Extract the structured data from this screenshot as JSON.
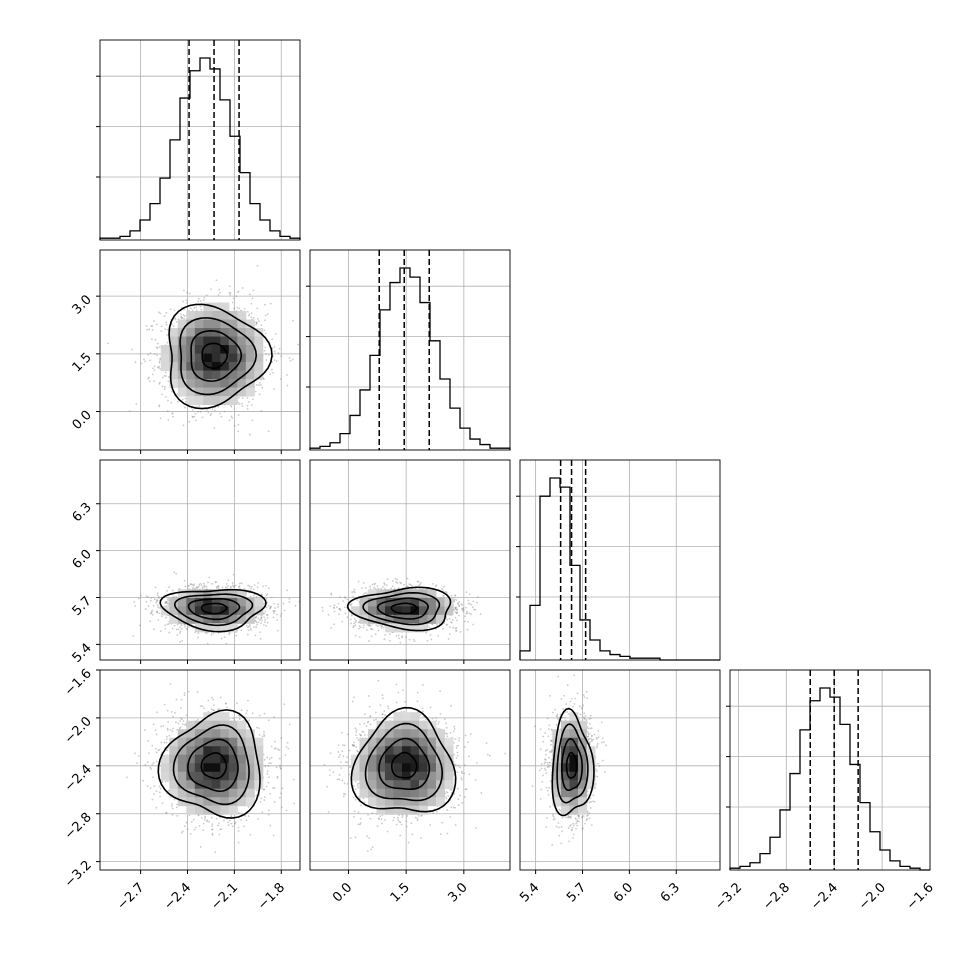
{
  "chart_data": {
    "type": "corner",
    "parameters": [
      {
        "ticks": [
          -2.7,
          -2.4,
          -2.1,
          -1.8
        ],
        "tick_labels": [
          "−2.7",
          "−2.4",
          "−2.1",
          "−1.8"
        ],
        "range": [
          -2.96,
          -1.68
        ],
        "mean": -2.23,
        "sigma": 0.16,
        "quantiles": [
          -2.39,
          -2.23,
          -2.07
        ],
        "hist": [
          0.01,
          0.01,
          0.02,
          0.05,
          0.11,
          0.2,
          0.34,
          0.55,
          0.78,
          0.93,
          1.0,
          0.94,
          0.77,
          0.57,
          0.37,
          0.2,
          0.11,
          0.05,
          0.02,
          0.01
        ]
      },
      {
        "ticks": [
          0.0,
          1.5,
          3.0
        ],
        "tick_labels": [
          "0.0",
          "1.5",
          "3.0"
        ],
        "range": [
          -1.0,
          4.2
        ],
        "mean": 1.45,
        "sigma": 0.65,
        "quantiles": [
          0.8,
          1.45,
          2.1
        ],
        "hist": [
          0.01,
          0.02,
          0.04,
          0.09,
          0.19,
          0.33,
          0.52,
          0.77,
          0.92,
          1.0,
          0.95,
          0.81,
          0.6,
          0.39,
          0.23,
          0.12,
          0.06,
          0.03,
          0.01,
          0.01
        ]
      },
      {
        "ticks": [
          5.4,
          5.7,
          6.0,
          6.3
        ],
        "tick_labels": [
          "5.4",
          "5.7",
          "6.0",
          "6.3"
        ],
        "range": [
          5.3,
          6.58
        ],
        "mean": 5.63,
        "sigma": 0.065,
        "quantiles": [
          5.56,
          5.63,
          5.72
        ],
        "hist": [
          0.05,
          0.3,
          0.9,
          1.0,
          0.95,
          0.52,
          0.22,
          0.11,
          0.05,
          0.03,
          0.02,
          0.01,
          0.01,
          0.01,
          0.0,
          0.0,
          0.0,
          0.0,
          0.0,
          0.0
        ]
      },
      {
        "ticks": [
          -3.2,
          -2.8,
          -2.4,
          -2.0,
          -1.6
        ],
        "tick_labels": [
          "−3.2",
          "−2.8",
          "−2.4",
          "−2.0",
          "−1.6"
        ],
        "range": [
          -3.27,
          -1.6
        ],
        "mean": -2.4,
        "sigma": 0.21,
        "quantiles": [
          -2.6,
          -2.4,
          -2.2
        ],
        "hist": [
          0.01,
          0.02,
          0.04,
          0.09,
          0.18,
          0.33,
          0.53,
          0.77,
          0.93,
          1.0,
          0.95,
          0.8,
          0.58,
          0.37,
          0.21,
          0.11,
          0.05,
          0.02,
          0.01,
          0.0
        ]
      }
    ],
    "contour_levels_sigma": [
      0.5,
      1.0,
      1.5,
      2.0
    ],
    "samples_per_panel": 1800,
    "colors": {
      "line": "#000000",
      "grid": "#b0b0b0",
      "points": "#8c8c8c",
      "density": "#000000"
    }
  }
}
